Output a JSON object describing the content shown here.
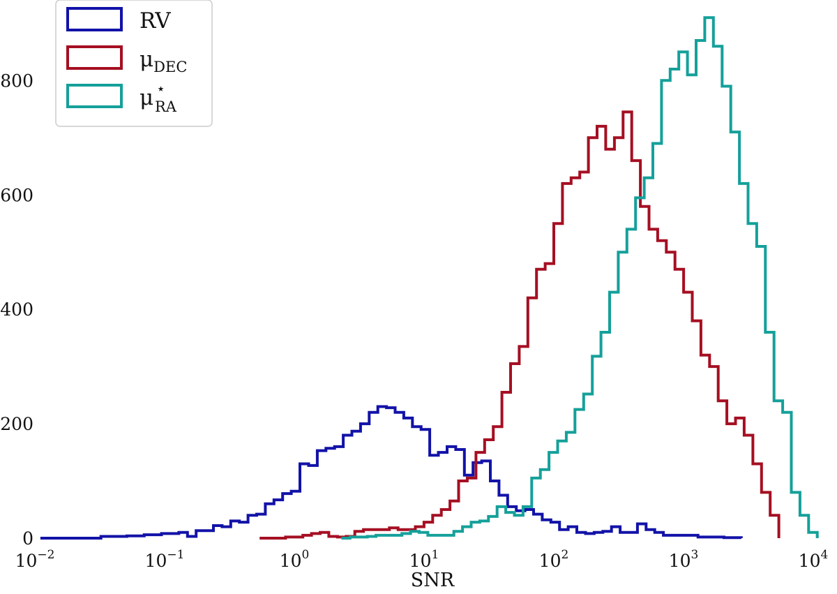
{
  "chart_data": {
    "type": "step-histogram",
    "xlabel": "SNR",
    "ylabel": "",
    "x_scale": "log",
    "xlim": [
      0.01,
      10000
    ],
    "ylim": [
      0,
      920
    ],
    "x_ticks": [
      {
        "base": "10",
        "exp": "−2",
        "value": 0.01
      },
      {
        "base": "10",
        "exp": "−1",
        "value": 0.1
      },
      {
        "base": "10",
        "exp": "0",
        "value": 1
      },
      {
        "base": "10",
        "exp": "1",
        "value": 10
      },
      {
        "base": "10",
        "exp": "2",
        "value": 100
      },
      {
        "base": "10",
        "exp": "3",
        "value": 1000
      },
      {
        "base": "10",
        "exp": "4",
        "value": 10000
      }
    ],
    "y_ticks": [
      "0",
      "200",
      "400",
      "600",
      "800"
    ],
    "y_tick_values": [
      0,
      200,
      400,
      600,
      800
    ],
    "grid": false,
    "legend_position": "top-left",
    "bin_log_width": 0.0667,
    "series": [
      {
        "key": "rv",
        "color": "#1212a8",
        "legend": {
          "main": "RV",
          "sub": "",
          "sup": ""
        },
        "log_x_start": -1.99,
        "counts": [
          0,
          0,
          0,
          0,
          0,
          0,
          0,
          3,
          3,
          3,
          4,
          4,
          6,
          6,
          8,
          8,
          10,
          3,
          13,
          13,
          22,
          20,
          30,
          28,
          40,
          42,
          60,
          67,
          78,
          82,
          130,
          127,
          153,
          157,
          160,
          180,
          187,
          200,
          220,
          230,
          228,
          220,
          210,
          195,
          190,
          145,
          150,
          160,
          155,
          110,
          132,
          135,
          100,
          75,
          55,
          48,
          50,
          42,
          32,
          28,
          15,
          20,
          10,
          8,
          10,
          12,
          20,
          10,
          10,
          25,
          15,
          10,
          5,
          5,
          5,
          5,
          2,
          2,
          2,
          1,
          1
        ]
      },
      {
        "key": "mu_dec",
        "color": "#a50f22",
        "legend": {
          "main": "μ",
          "sub": "DEC",
          "sup": ""
        },
        "log_x_start": -0.3,
        "counts": [
          0,
          0,
          0,
          2,
          2,
          5,
          8,
          10,
          3,
          2,
          3,
          12,
          15,
          15,
          15,
          18,
          15,
          15,
          20,
          28,
          40,
          50,
          65,
          100,
          105,
          150,
          172,
          195,
          255,
          305,
          335,
          420,
          470,
          480,
          550,
          620,
          630,
          640,
          700,
          720,
          680,
          700,
          745,
          660,
          580,
          540,
          520,
          500,
          470,
          430,
          380,
          320,
          300,
          240,
          200,
          210,
          180,
          130,
          80,
          40
        ]
      },
      {
        "key": "mu_ra",
        "color": "#15a09a",
        "legend": {
          "main": "μ",
          "sub": "RA",
          "sup": "⋆"
        },
        "log_x_start": 0.33,
        "counts": [
          0,
          2,
          2,
          3,
          5,
          5,
          5,
          8,
          12,
          10,
          5,
          5,
          5,
          12,
          20,
          28,
          30,
          38,
          55,
          45,
          40,
          55,
          105,
          120,
          150,
          170,
          185,
          225,
          252,
          318,
          360,
          430,
          500,
          540,
          595,
          630,
          690,
          800,
          820,
          850,
          810,
          870,
          910,
          860,
          790,
          710,
          620,
          550,
          510,
          360,
          240,
          220,
          80,
          40,
          10
        ]
      }
    ]
  }
}
